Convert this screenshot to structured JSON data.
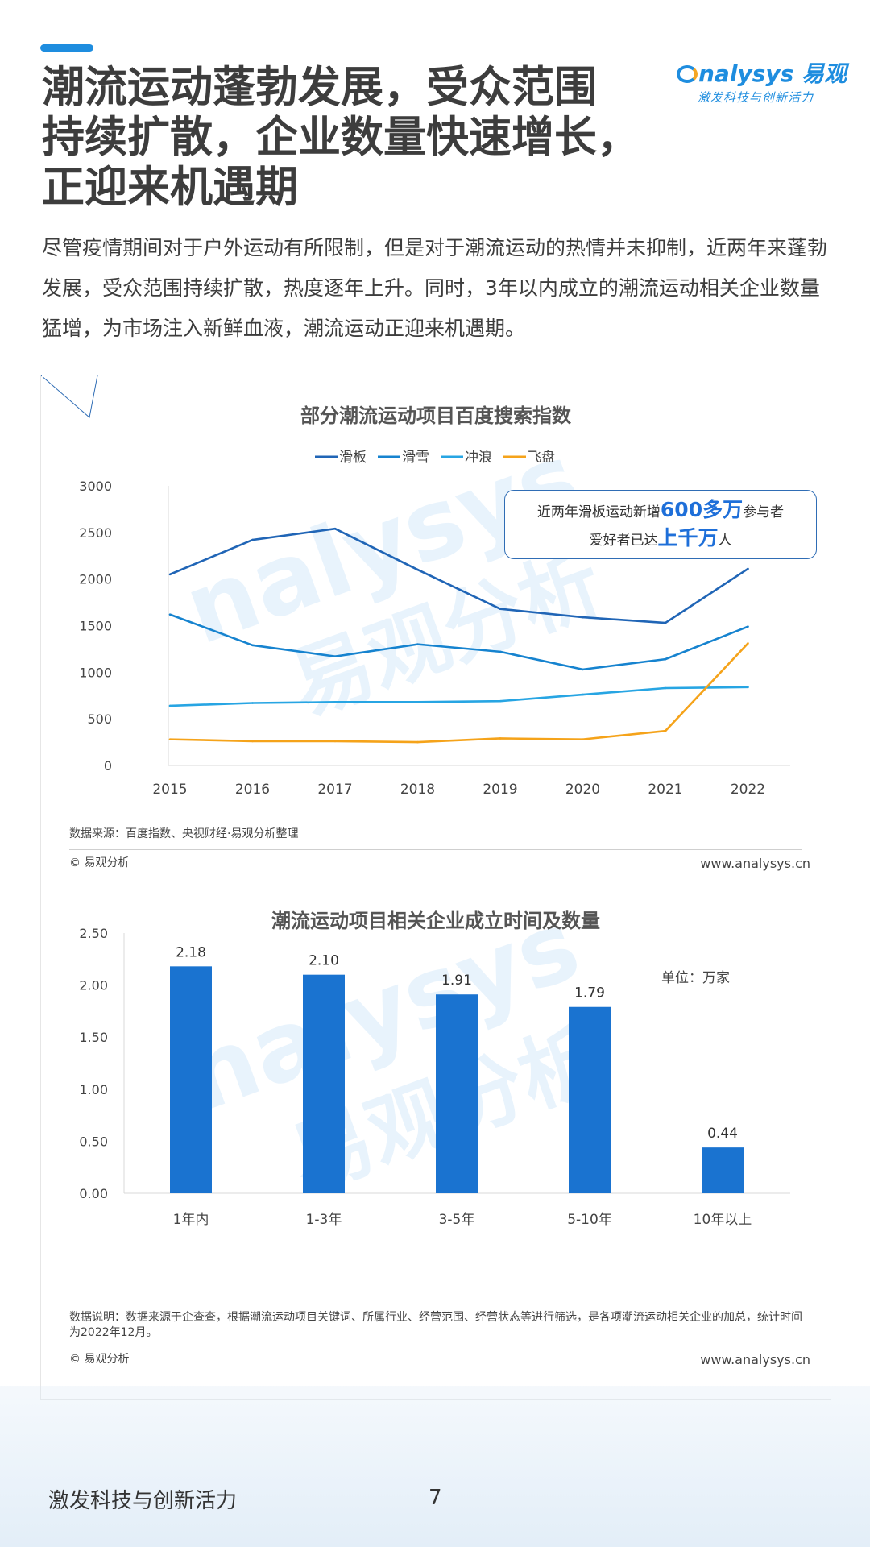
{
  "header": {
    "title_lines": [
      "潮流运动蓬勃发展，受众范围",
      "持续扩散，企业数量快速增长，",
      "正迎来机遇期"
    ],
    "logo_text": "nalysys 易观",
    "logo_tagline": "激发科技与创新活力"
  },
  "intro": "尽管疫情期间对于户外运动有所限制，但是对于潮流运动的热情并未抑制，近两年来蓬勃发展，受众范围持续扩散，热度逐年上升。同时，3年以内成立的潮流运动相关企业数量猛增，为市场注入新鲜血液，潮流运动正迎来机遇期。",
  "watermark": {
    "line1": "nalysys",
    "line2": "易观分析"
  },
  "colors": {
    "accent": "#1e8ddf",
    "bar": "#1a73d0",
    "orange": "#f5a623"
  },
  "callout": {
    "line1_pre": "近两年滑板运动新增",
    "line1_num": "600多万",
    "line1_post": "参与者",
    "line2_pre": "爱好者已达",
    "line2_num": "上千万",
    "line2_post": "人"
  },
  "chart1_footer": {
    "source": "数据来源：百度指数、央视财经·易观分析整理",
    "copyright": "© 易观分析",
    "website": "www.analysys.cn"
  },
  "chart2_footer": {
    "note": "数据说明：数据来源于企查查，根据潮流运动项目关键词、所属行业、经营范围、经营状态等进行筛选，是各项潮流运动相关企业的加总，统计时间为2022年12月。",
    "copyright": "© 易观分析",
    "website": "www.analysys.cn"
  },
  "footer": {
    "tagline": "激发科技与创新活力",
    "page_number": "7"
  },
  "chart_data": [
    {
      "type": "line",
      "title": "部分潮流运动项目百度搜索指数",
      "x": [
        "2015",
        "2016",
        "2017",
        "2018",
        "2019",
        "2020",
        "2021",
        "2022"
      ],
      "ylim": [
        0,
        3000
      ],
      "yticks": [
        0,
        500,
        1000,
        1500,
        2000,
        2500,
        3000
      ],
      "grid": false,
      "legend": "top",
      "series": [
        {
          "name": "滑板",
          "color": "#2065b6",
          "values": [
            2050,
            2420,
            2540,
            2100,
            1680,
            1590,
            1530,
            2110
          ]
        },
        {
          "name": "滑雪",
          "color": "#1683cf",
          "values": [
            1620,
            1290,
            1170,
            1300,
            1220,
            1030,
            1140,
            1490
          ]
        },
        {
          "name": "冲浪",
          "color": "#27a5e3",
          "values": [
            640,
            670,
            680,
            680,
            690,
            760,
            830,
            840
          ]
        },
        {
          "name": "飞盘",
          "color": "#f5a31a",
          "values": [
            280,
            260,
            260,
            250,
            290,
            280,
            370,
            1310
          ]
        }
      ]
    },
    {
      "type": "bar",
      "title": "潮流运动项目相关企业成立时间及数量",
      "unit_label": "单位：万家",
      "categories": [
        "1年内",
        "1-3年",
        "3-5年",
        "5-10年",
        "10年以上"
      ],
      "values": [
        2.18,
        2.1,
        1.91,
        1.79,
        0.44
      ],
      "value_labels": [
        "2.18",
        "2.10",
        "1.91",
        "1.79",
        "0.44"
      ],
      "ylim": [
        0,
        2.5
      ],
      "yticks": [
        "0.00",
        "0.50",
        "1.00",
        "1.50",
        "2.00",
        "2.50"
      ],
      "grid": false
    }
  ]
}
